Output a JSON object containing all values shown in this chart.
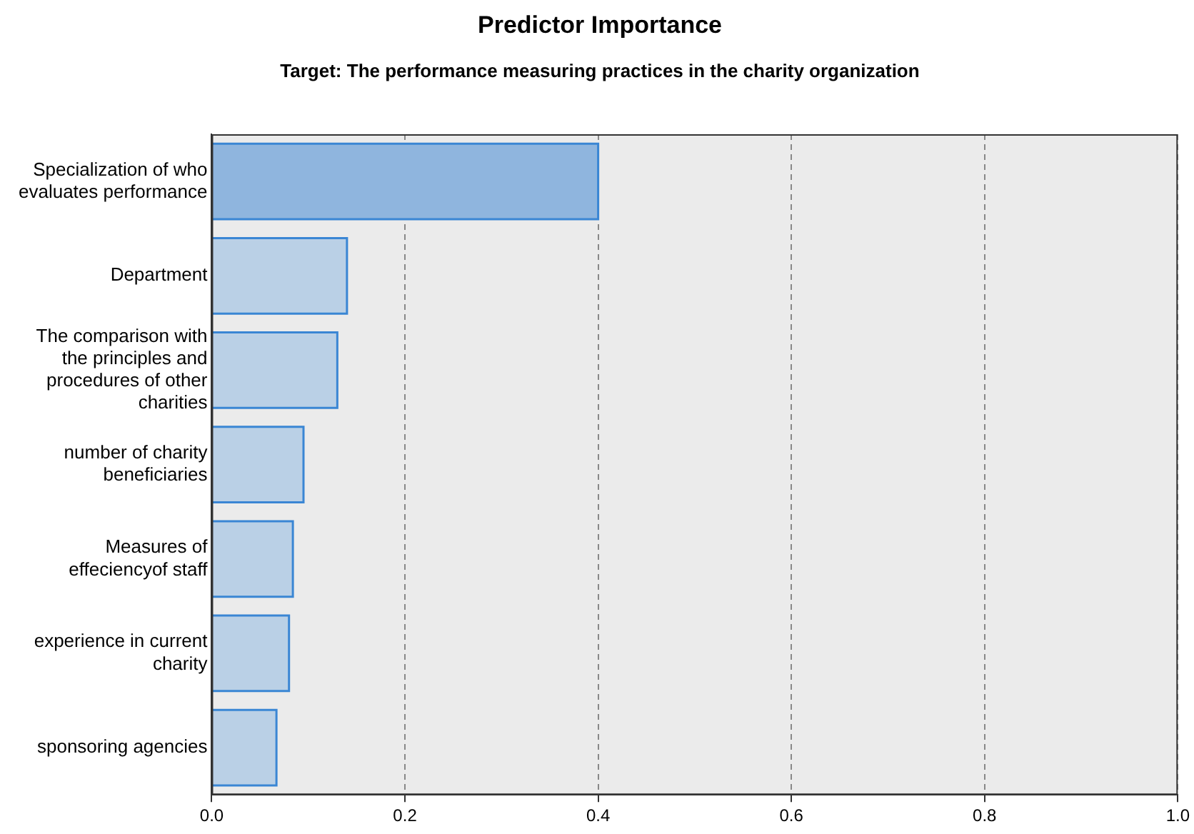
{
  "chart_data": {
    "type": "bar",
    "orientation": "horizontal",
    "title": "Predictor Importance",
    "subtitle": "Target: The performance measuring practices in the charity organization",
    "categories": [
      "Specialization of who evaluates performance",
      "Department",
      "The comparison with the principles and procedures of other charities",
      "number of charity beneficiaries",
      "Measures of effeciencyof staff",
      "experience in current charity",
      "sponsoring agencies"
    ],
    "values": [
      0.4,
      0.14,
      0.13,
      0.095,
      0.084,
      0.08,
      0.067
    ],
    "color": "#3a86d4",
    "colors": [
      "#8fb5de",
      "#bad0e6",
      "#bad0e6",
      "#bad0e6",
      "#bad0e6",
      "#bad0e6",
      "#bad0e6"
    ],
    "xlim": [
      0,
      1
    ],
    "xticks": [
      {
        "value": 0,
        "label": "0.0"
      },
      {
        "value": 0.2,
        "label": "0.2"
      },
      {
        "value": 0.4,
        "label": "0.4"
      },
      {
        "value": 0.6,
        "label": "0.6"
      },
      {
        "value": 0.8,
        "label": "0.8"
      },
      {
        "value": 1,
        "label": "1.0"
      }
    ],
    "grid": "x",
    "legend": false
  }
}
